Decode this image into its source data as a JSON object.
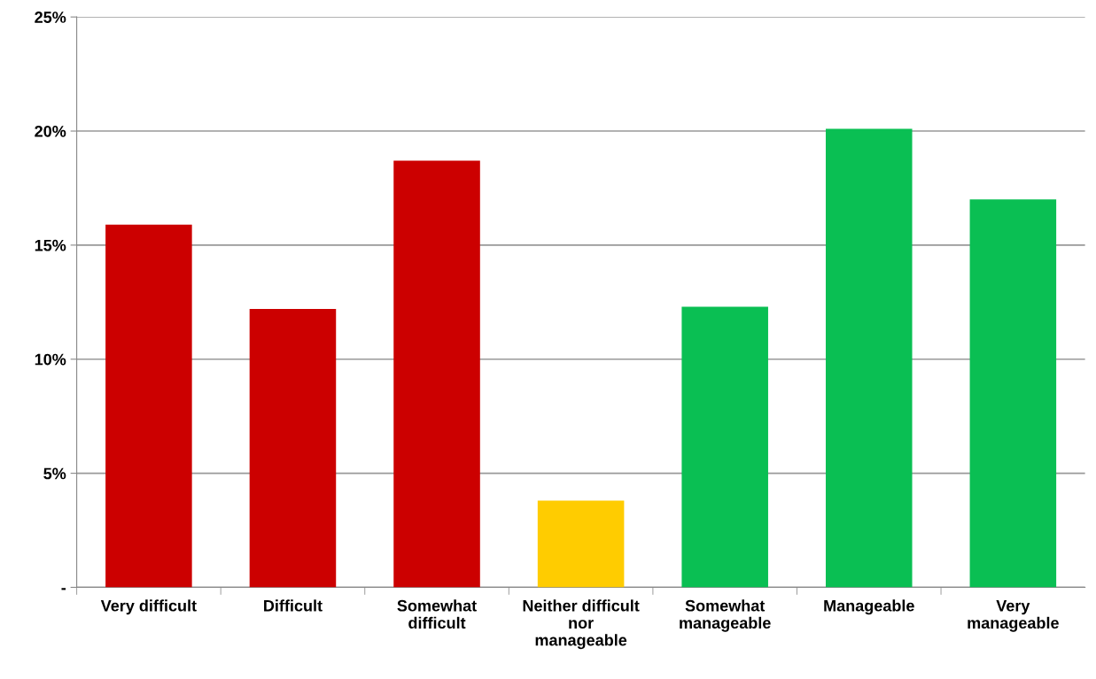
{
  "chart_data": {
    "type": "bar",
    "categories": [
      "Very difficult",
      "Difficult",
      "Somewhat\ndifficult",
      "Neither difficult\nnor\nmanageable",
      "Somewhat\nmanageable",
      "Manageable",
      "Very\nmanageable"
    ],
    "values": [
      15.9,
      12.2,
      18.7,
      3.8,
      12.3,
      20.1,
      17.0
    ],
    "colors": [
      "#cc0000",
      "#cc0000",
      "#cc0000",
      "#ffcc00",
      "#0abf53",
      "#0abf53",
      "#0abf53"
    ],
    "ylim": [
      0,
      25
    ],
    "yticks": [
      {
        "value": 0,
        "label": "-"
      },
      {
        "value": 5,
        "label": "5%"
      },
      {
        "value": 10,
        "label": "10%"
      },
      {
        "value": 15,
        "label": "15%"
      },
      {
        "value": 20,
        "label": "20%"
      },
      {
        "value": 25,
        "label": "25%"
      }
    ],
    "grid": "y",
    "legend": false
  }
}
